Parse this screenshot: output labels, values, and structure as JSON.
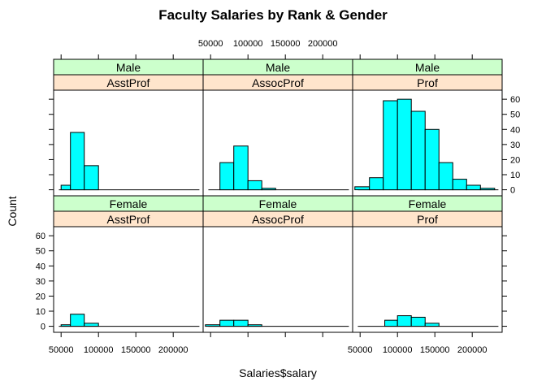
{
  "chart_data": {
    "type": "bar",
    "title": "Faculty Salaries by Rank & Gender",
    "xlabel": "Salaries$salary",
    "ylabel": "Count",
    "x_ticks": [
      "50000",
      "100000",
      "150000",
      "200000"
    ],
    "y_ticks": [
      "0",
      "10",
      "20",
      "30",
      "40",
      "50",
      "60"
    ],
    "xlim": [
      40000,
      240000
    ],
    "ylim": [
      -4,
      66
    ],
    "strip_colors": {
      "gender": "#ccffcc",
      "rank": "#ffe5cc"
    },
    "bar_color": "#00ffff",
    "panels": [
      {
        "gender": "Female",
        "rank": "AsstProf",
        "bins": [
          {
            "x0": 50000,
            "x1": 62500,
            "count": 1
          },
          {
            "x0": 62500,
            "x1": 81000,
            "count": 8
          },
          {
            "x0": 81000,
            "x1": 100000,
            "count": 2
          }
        ]
      },
      {
        "gender": "Female",
        "rank": "AssocProf",
        "bins": [
          {
            "x0": 43000,
            "x1": 62500,
            "count": 1
          },
          {
            "x0": 62500,
            "x1": 81000,
            "count": 4
          },
          {
            "x0": 81000,
            "x1": 100000,
            "count": 4
          },
          {
            "x0": 100000,
            "x1": 118500,
            "count": 1
          }
        ]
      },
      {
        "gender": "Female",
        "rank": "Prof",
        "bins": [
          {
            "x0": 83000,
            "x1": 100000,
            "count": 4
          },
          {
            "x0": 100000,
            "x1": 118500,
            "count": 7
          },
          {
            "x0": 118500,
            "x1": 137000,
            "count": 6
          },
          {
            "x0": 137000,
            "x1": 155500,
            "count": 2
          }
        ]
      },
      {
        "gender": "Male",
        "rank": "AsstProf",
        "bins": [
          {
            "x0": 50000,
            "x1": 62500,
            "count": 3
          },
          {
            "x0": 62500,
            "x1": 81000,
            "count": 38
          },
          {
            "x0": 81000,
            "x1": 100000,
            "count": 16
          }
        ]
      },
      {
        "gender": "Male",
        "rank": "AssocProf",
        "bins": [
          {
            "x0": 62500,
            "x1": 81000,
            "count": 18
          },
          {
            "x0": 81000,
            "x1": 100000,
            "count": 29
          },
          {
            "x0": 100000,
            "x1": 118500,
            "count": 6
          },
          {
            "x0": 118500,
            "x1": 137000,
            "count": 1
          }
        ]
      },
      {
        "gender": "Male",
        "rank": "Prof",
        "bins": [
          {
            "x0": 43000,
            "x1": 62500,
            "count": 2
          },
          {
            "x0": 62500,
            "x1": 81000,
            "count": 8
          },
          {
            "x0": 81000,
            "x1": 100000,
            "count": 59
          },
          {
            "x0": 100000,
            "x1": 118500,
            "count": 60
          },
          {
            "x0": 118500,
            "x1": 137000,
            "count": 52
          },
          {
            "x0": 137000,
            "x1": 155500,
            "count": 40
          },
          {
            "x0": 155500,
            "x1": 174000,
            "count": 18
          },
          {
            "x0": 174000,
            "x1": 192500,
            "count": 7
          },
          {
            "x0": 192500,
            "x1": 211000,
            "count": 3
          },
          {
            "x0": 211000,
            "x1": 230000,
            "count": 1
          }
        ]
      }
    ]
  }
}
